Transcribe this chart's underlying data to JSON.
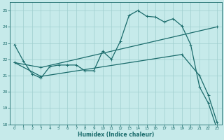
{
  "xlabel": "Humidex (Indice chaleur)",
  "bg_color": "#c6eaea",
  "grid_color": "#9ecece",
  "line_color": "#1a6b6b",
  "xlim": [
    -0.5,
    23.5
  ],
  "ylim": [
    18,
    25.5
  ],
  "xticks": [
    0,
    1,
    2,
    3,
    4,
    5,
    6,
    7,
    8,
    9,
    10,
    11,
    12,
    13,
    14,
    15,
    16,
    17,
    18,
    19,
    20,
    21,
    22,
    23
  ],
  "yticks": [
    18,
    19,
    20,
    21,
    22,
    23,
    24,
    25
  ],
  "line1_x": [
    0,
    1,
    2,
    3,
    4,
    5,
    6,
    7,
    8,
    9,
    10,
    11,
    12,
    13,
    14,
    15,
    16,
    17,
    18,
    19,
    20,
    21,
    22,
    23
  ],
  "line1_y": [
    22.9,
    21.9,
    21.1,
    20.85,
    21.55,
    21.65,
    21.65,
    21.65,
    21.3,
    21.3,
    22.5,
    22.0,
    23.1,
    24.7,
    25.0,
    24.65,
    24.6,
    24.3,
    24.5,
    24.05,
    22.9,
    20.3,
    19.3,
    17.7
  ],
  "line2_x": [
    0,
    3,
    23
  ],
  "line2_y": [
    21.8,
    21.5,
    24.0
  ],
  "line3_x": [
    0,
    3,
    19,
    21,
    22,
    23
  ],
  "line3_y": [
    21.8,
    20.95,
    22.3,
    21.0,
    19.8,
    18.1
  ]
}
